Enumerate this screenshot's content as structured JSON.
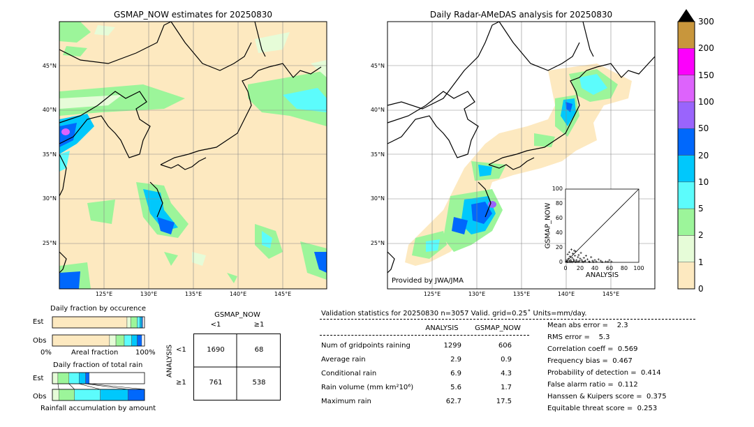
{
  "left_map": {
    "title": "GSMAP_NOW estimates for 20250830",
    "lon_ticks": [
      "125°E",
      "130°E",
      "135°E",
      "140°E",
      "145°E"
    ],
    "lat_ticks": [
      "45°N",
      "40°N",
      "35°N",
      "30°N",
      "25°N"
    ]
  },
  "right_map": {
    "title": "Daily Radar-AMeDAS analysis for 20250830",
    "lon_ticks": [
      "125°E",
      "130°E",
      "135°E",
      "140°E",
      "145°E"
    ],
    "lat_ticks": [
      "45°N",
      "40°N",
      "35°N",
      "30°N",
      "25°N"
    ],
    "credit": "Provided by JWA/JMA"
  },
  "colorbar": {
    "labels": [
      "0",
      "1",
      "2",
      "5",
      "10",
      "20",
      "50",
      "100",
      "150",
      "200",
      "300"
    ],
    "colors": [
      "#fde9c0",
      "#e6fcd8",
      "#9cf59a",
      "#5cfcfc",
      "#00c8fc",
      "#0068fc",
      "#9a64fc",
      "#dd63fc",
      "#fc00fc",
      "#c8963c"
    ]
  },
  "chart_data": [
    {
      "type": "scatter",
      "xlabel": "ANALYSIS",
      "ylabel": "GSMAP_NOW",
      "xlim": [
        0,
        100
      ],
      "ylim": [
        0,
        100
      ],
      "x_ticks": [
        "0",
        "20",
        "40",
        "60",
        "80",
        "100"
      ],
      "y_ticks": [
        "0",
        "20",
        "40",
        "60",
        "80",
        "100"
      ],
      "points": [
        [
          1,
          1
        ],
        [
          2,
          3
        ],
        [
          3,
          0.5
        ],
        [
          4,
          5
        ],
        [
          5,
          2
        ],
        [
          6,
          8
        ],
        [
          7,
          3
        ],
        [
          8,
          1
        ],
        [
          9,
          6
        ],
        [
          10,
          12
        ],
        [
          11,
          4
        ],
        [
          12,
          2
        ],
        [
          13,
          9
        ],
        [
          14,
          15
        ],
        [
          15,
          3
        ],
        [
          16,
          1
        ],
        [
          17,
          7
        ],
        [
          18,
          10
        ],
        [
          19,
          2
        ],
        [
          20,
          5
        ],
        [
          21,
          13
        ],
        [
          22,
          3
        ],
        [
          23,
          1
        ],
        [
          25,
          6
        ],
        [
          27,
          2
        ],
        [
          28,
          9
        ],
        [
          30,
          4
        ],
        [
          32,
          1
        ],
        [
          35,
          7
        ],
        [
          37,
          2
        ],
        [
          40,
          3
        ],
        [
          42,
          1
        ],
        [
          45,
          4
        ],
        [
          48,
          2
        ],
        [
          55,
          1
        ],
        [
          60,
          3
        ],
        [
          62.7,
          1
        ],
        [
          3,
          11
        ],
        [
          5,
          14
        ],
        [
          8,
          17.5
        ],
        [
          12,
          16
        ],
        [
          2,
          0.8
        ],
        [
          6,
          0.5
        ],
        [
          9,
          0.3
        ],
        [
          11,
          1.5
        ],
        [
          14,
          0.6
        ],
        [
          18,
          0.9
        ],
        [
          24,
          0.4
        ],
        [
          26,
          1.2
        ],
        [
          33,
          0.7
        ],
        [
          38,
          0.5
        ],
        [
          50,
          0.6
        ],
        [
          58,
          0.9
        ]
      ]
    },
    {
      "type": "bar",
      "title": "Daily fraction by occurence",
      "categories": [
        "Est",
        "Obs"
      ],
      "xlabel": "Areal fraction",
      "x_ticks": [
        "0%",
        "100%"
      ],
      "series": [
        {
          "values": [
            [
              0.81,
              0.04,
              0.07,
              0.03,
              0.02,
              0.01
            ],
            [
              0.62,
              0.07,
              0.09,
              0.08,
              0.06,
              0.05
            ]
          ]
        }
      ],
      "colors": [
        "#fde9c0",
        "#e6fcd8",
        "#9cf59a",
        "#5cfcfc",
        "#00c8fc",
        "#0068fc"
      ]
    },
    {
      "type": "bar",
      "title": "Daily fraction of total rain",
      "categories": [
        "Est",
        "Obs"
      ],
      "xlabel": "Rainfall accumulation by amount",
      "series": [
        {
          "values": [
            [
              0.06,
              0.12,
              0.11,
              0.07,
              0.04
            ],
            [
              0.07,
              0.17,
              0.28,
              0.3,
              0.18
            ]
          ]
        }
      ],
      "colors": [
        "#e6fcd8",
        "#9cf59a",
        "#5cfcfc",
        "#00c8fc",
        "#0068fc"
      ]
    },
    {
      "type": "table",
      "title": "GSMAP_NOW",
      "col_headers": [
        "<1",
        "≥1"
      ],
      "row_label": "ANALYSIS",
      "row_headers": [
        "<1",
        "≥1"
      ],
      "cells": [
        [
          "1690",
          "68"
        ],
        [
          "761",
          "538"
        ]
      ]
    }
  ],
  "stats": {
    "header": "Validation statistics for 20250830  n=3057 Valid. grid=0.25˚ Units=mm/day.",
    "col_analysis": "ANALYSIS",
    "col_gsmap": "GSMAP_NOW",
    "rows": [
      {
        "label": "Num of gridpoints raining",
        "analysis": "1299",
        "gsmap": "606"
      },
      {
        "label": "Average rain",
        "analysis": "2.9",
        "gsmap": "0.9"
      },
      {
        "label": "Conditional rain",
        "analysis": "6.9",
        "gsmap": "4.3"
      },
      {
        "label": "Rain volume (mm km²10⁶)",
        "analysis": "5.6",
        "gsmap": "1.7"
      },
      {
        "label": "Maximum rain",
        "analysis": "62.7",
        "gsmap": "17.5"
      }
    ],
    "scores": [
      "Mean abs error =    2.3",
      "RMS error =    5.3",
      "Correlation coeff =  0.569",
      "Frequency bias =  0.467",
      "Probability of detection =  0.414",
      "False alarm ratio =  0.112",
      "Hanssen & Kuipers score =  0.375",
      "Equitable threat score =  0.253"
    ]
  }
}
